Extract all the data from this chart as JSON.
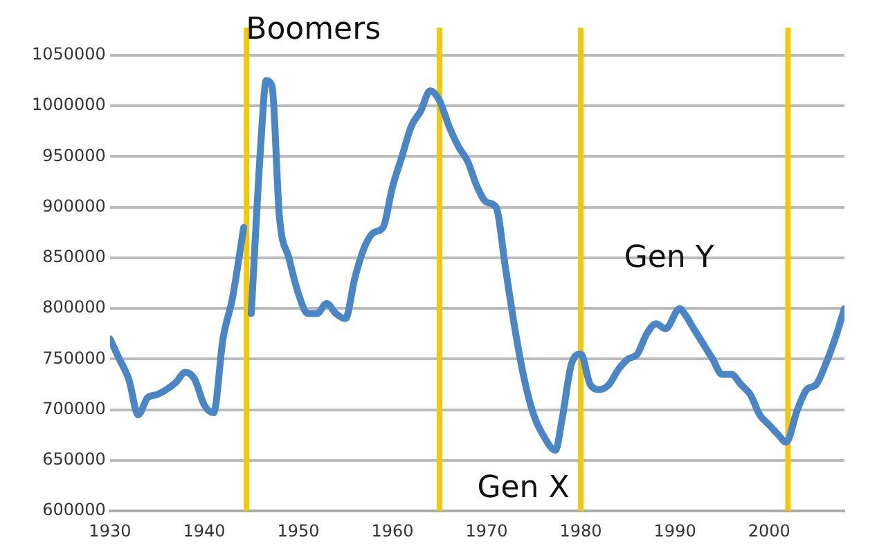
{
  "chart_data": {
    "type": "line",
    "x": [
      1930,
      1931,
      1932,
      1933,
      1934,
      1935,
      1936,
      1937,
      1938,
      1939,
      1940,
      1941,
      1942,
      1943,
      1944.2,
      1944.5,
      1945,
      1946,
      1946.6,
      1947.2,
      1948,
      1949,
      1950,
      1951,
      1952,
      1953,
      1954,
      1955,
      1956,
      1957,
      1958,
      1959,
      1960,
      1961,
      1962,
      1963,
      1964,
      1965,
      1966,
      1967,
      1968,
      1969,
      1970,
      1971,
      1972,
      1973,
      1974,
      1975,
      1976,
      1977.3,
      1978,
      1979,
      1980,
      1981,
      1982,
      1983,
      1984,
      1985,
      1986,
      1987,
      1988,
      1989,
      1990.5,
      1991,
      1992,
      1993,
      1994,
      1995,
      1996,
      1997,
      1998,
      1999,
      2000,
      2001,
      2001.8,
      2003,
      2004,
      2005,
      2006,
      2007,
      2008
    ],
    "series": [
      {
        "color": "#4a86c5",
        "values": [
          770000,
          750000,
          730000,
          695000,
          712000,
          715000,
          720000,
          727000,
          737000,
          730000,
          705000,
          697000,
          770000,
          810000,
          880000,
          null,
          795000,
          960000,
          1025000,
          1020000,
          890000,
          850000,
          815000,
          795000,
          795000,
          805000,
          795000,
          790000,
          830000,
          860000,
          875000,
          880000,
          920000,
          950000,
          980000,
          995000,
          1015000,
          1005000,
          980000,
          960000,
          945000,
          920000,
          905000,
          900000,
          840000,
          780000,
          730000,
          695000,
          675000,
          660000,
          690000,
          745000,
          755000,
          725000,
          720000,
          725000,
          740000,
          750000,
          755000,
          775000,
          785000,
          780000,
          800000,
          795000,
          780000,
          765000,
          750000,
          735000,
          735000,
          725000,
          715000,
          695000,
          685000,
          675000,
          668000,
          700000,
          720000,
          725000,
          745000,
          770000,
          800000
        ]
      }
    ],
    "xlim": [
      1930,
      2008
    ],
    "xticks": [
      1930,
      1940,
      1950,
      1960,
      1970,
      1980,
      1990,
      2000
    ],
    "ylim": [
      600000,
      1050000
    ],
    "yticks": [
      600000,
      650000,
      700000,
      750000,
      800000,
      850000,
      900000,
      950000,
      1000000,
      1050000
    ],
    "grid": "y",
    "legend": false,
    "marker": "none",
    "line_style": "solid",
    "ref_lines": [
      {
        "axis": "x",
        "value": 1944.5,
        "color": "#f2c80f"
      },
      {
        "axis": "x",
        "value": 1965,
        "color": "#f2c80f"
      },
      {
        "axis": "x",
        "value": 1980,
        "color": "#f2c80f"
      },
      {
        "axis": "x",
        "value": 2002,
        "color": "#f2c80f"
      }
    ],
    "annotations": [
      "Boomers",
      "Gen X",
      "Gen Y"
    ]
  }
}
